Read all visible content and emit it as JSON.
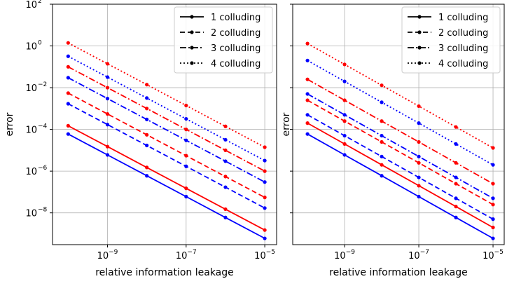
{
  "chart_data": [
    {
      "type": "line",
      "xscale": "log",
      "yscale": "log",
      "xlim": [
        4e-11,
        2e-05
      ],
      "ylim": [
        3e-10,
        100
      ],
      "x_ticks": [
        {
          "value": 1e-09,
          "mant": "10",
          "exp": "−9"
        },
        {
          "value": 1e-07,
          "mant": "10",
          "exp": "−7"
        },
        {
          "value": 1e-05,
          "mant": "10",
          "exp": "−5"
        }
      ],
      "y_ticks": [
        {
          "value": 100,
          "mant": "10",
          "exp": "2"
        },
        {
          "value": 1,
          "mant": "10",
          "exp": "0"
        },
        {
          "value": 0.01,
          "mant": "10",
          "exp": "−2"
        },
        {
          "value": 0.0001,
          "mant": "10",
          "exp": "−4"
        },
        {
          "value": 1e-06,
          "mant": "10",
          "exp": "−6"
        },
        {
          "value": 1e-08,
          "mant": "10",
          "exp": "−8"
        }
      ],
      "show_y_tick_labels": true,
      "xlabel": "relative information leakage",
      "ylabel": "error",
      "grid": true,
      "legend": "top-right",
      "x": [
        1e-10,
        1e-09,
        1e-08,
        1e-07,
        1e-06,
        1e-05
      ],
      "series": [
        {
          "name": "1 colluding",
          "color": "#0000ff",
          "dash": "solid",
          "values": [
            6e-05,
            6e-06,
            6e-07,
            6e-08,
            6e-09,
            6e-10
          ]
        },
        {
          "name": "1 colluding",
          "color": "#ff0000",
          "dash": "solid",
          "values": [
            0.00015,
            1.5e-05,
            1.5e-06,
            1.5e-07,
            1.5e-08,
            1.5e-09
          ]
        },
        {
          "name": "2 colluding",
          "color": "#0000ff",
          "dash": "dashed",
          "values": [
            0.0017,
            0.00017,
            1.7e-05,
            1.7e-06,
            1.7e-07,
            1.7e-08
          ]
        },
        {
          "name": "2 colluding",
          "color": "#ff0000",
          "dash": "dashed",
          "values": [
            0.0055,
            0.00055,
            5.5e-05,
            5.5e-06,
            5.5e-07,
            5.5e-08
          ]
        },
        {
          "name": "3 colluding",
          "color": "#0000ff",
          "dash": "dashdot",
          "values": [
            0.03,
            0.003,
            0.0003,
            3e-05,
            3e-06,
            3e-07
          ]
        },
        {
          "name": "3 colluding",
          "color": "#ff0000",
          "dash": "dashdot",
          "values": [
            0.1,
            0.01,
            0.001,
            0.0001,
            1e-05,
            1e-06
          ]
        },
        {
          "name": "4 colluding",
          "color": "#0000ff",
          "dash": "dotted",
          "values": [
            0.32,
            0.032,
            0.0032,
            0.00032,
            3.2e-05,
            3.2e-06
          ]
        },
        {
          "name": "4 colluding",
          "color": "#ff0000",
          "dash": "dotted",
          "values": [
            1.4,
            0.14,
            0.014,
            0.0014,
            0.00014,
            1.4e-05
          ]
        }
      ]
    },
    {
      "type": "line",
      "xscale": "log",
      "yscale": "log",
      "xlim": [
        4e-11,
        2e-05
      ],
      "ylim": [
        3e-10,
        100
      ],
      "x_ticks": [
        {
          "value": 1e-09,
          "mant": "10",
          "exp": "−9"
        },
        {
          "value": 1e-07,
          "mant": "10",
          "exp": "−7"
        },
        {
          "value": 1e-05,
          "mant": "10",
          "exp": "−5"
        }
      ],
      "y_ticks": [
        {
          "value": 100,
          "mant": "",
          "exp": ""
        },
        {
          "value": 1,
          "mant": "",
          "exp": ""
        },
        {
          "value": 0.01,
          "mant": "",
          "exp": ""
        },
        {
          "value": 0.0001,
          "mant": "",
          "exp": ""
        },
        {
          "value": 1e-06,
          "mant": "",
          "exp": ""
        },
        {
          "value": 1e-08,
          "mant": "",
          "exp": ""
        }
      ],
      "show_y_tick_labels": false,
      "xlabel": "relative information leakage",
      "ylabel": "error",
      "grid": true,
      "legend": "top-right",
      "x": [
        1e-10,
        1e-09,
        1e-08,
        1e-07,
        1e-06,
        1e-05
      ],
      "series": [
        {
          "name": "1 colluding",
          "color": "#0000ff",
          "dash": "solid",
          "values": [
            6e-05,
            6e-06,
            6e-07,
            6e-08,
            6e-09,
            6e-10
          ]
        },
        {
          "name": "1 colluding",
          "color": "#ff0000",
          "dash": "solid",
          "values": [
            0.0002,
            2e-05,
            2e-06,
            2e-07,
            2e-08,
            2e-09
          ]
        },
        {
          "name": "2 colluding",
          "color": "#0000ff",
          "dash": "dashed",
          "values": [
            0.0005,
            5e-05,
            5e-06,
            5e-07,
            5e-08,
            5e-09
          ]
        },
        {
          "name": "2 colluding",
          "color": "#ff0000",
          "dash": "dashed",
          "values": [
            0.0025,
            0.00025,
            2.5e-05,
            2.5e-06,
            2.5e-07,
            2.5e-08
          ]
        },
        {
          "name": "3 colluding",
          "color": "#0000ff",
          "dash": "dashdot",
          "values": [
            0.005,
            0.0005,
            5e-05,
            5e-06,
            5e-07,
            5e-08
          ]
        },
        {
          "name": "3 colluding",
          "color": "#ff0000",
          "dash": "dashdot",
          "values": [
            0.025,
            0.0025,
            0.00025,
            2.5e-05,
            2.5e-06,
            2.5e-07
          ]
        },
        {
          "name": "4 colluding",
          "color": "#0000ff",
          "dash": "dotted",
          "values": [
            0.2,
            0.02,
            0.002,
            0.0002,
            2e-05,
            2e-06
          ]
        },
        {
          "name": "4 colluding",
          "color": "#ff0000",
          "dash": "dotted",
          "values": [
            1.3,
            0.13,
            0.013,
            0.0013,
            0.00013,
            1.3e-05
          ]
        }
      ]
    }
  ],
  "legend_entries": [
    {
      "label": "1 colluding",
      "dash": "solid"
    },
    {
      "label": "2 colluding",
      "dash": "dashed"
    },
    {
      "label": "3 colluding",
      "dash": "dashdot"
    },
    {
      "label": "4 colluding",
      "dash": "dotted"
    }
  ],
  "colors": {
    "blue": "#0000ff",
    "red": "#ff0000",
    "grid": "#b0b0b0",
    "axes": "#000000"
  }
}
